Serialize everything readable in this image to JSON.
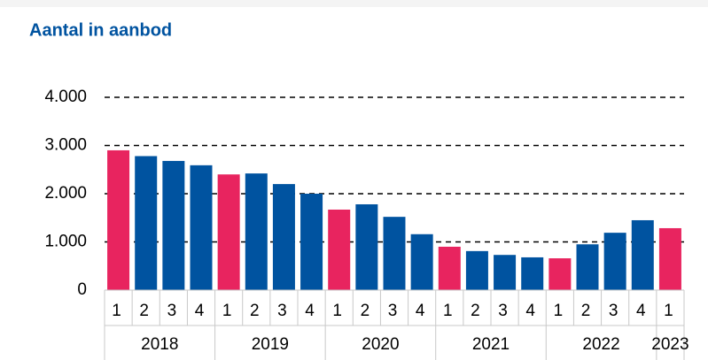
{
  "chart_data": {
    "type": "bar",
    "title": "Aantal in aanbod",
    "categories": [
      "1",
      "2",
      "3",
      "4",
      "1",
      "2",
      "3",
      "4",
      "1",
      "2",
      "3",
      "4",
      "1",
      "2",
      "3",
      "4",
      "1",
      "2",
      "3",
      "4",
      "1"
    ],
    "years": [
      "2018",
      "2019",
      "2020",
      "2021",
      "2022",
      "2023"
    ],
    "values": [
      2900,
      2780,
      2680,
      2590,
      2400,
      2420,
      2200,
      2000,
      1670,
      1780,
      1520,
      1160,
      900,
      810,
      730,
      680,
      660,
      950,
      1190,
      1450,
      1285
    ],
    "colors": {
      "q1": "#e8245f",
      "other": "#0053a0"
    },
    "ylim": [
      0,
      4000
    ],
    "yticks": [
      0,
      {
        "value": 1000,
        "label": "1.000"
      },
      {
        "value": 2000,
        "label": "2.000"
      },
      {
        "value": 3000,
        "label": "3.000"
      },
      {
        "value": 4000,
        "label": "4.000"
      }
    ],
    "grid": true
  }
}
